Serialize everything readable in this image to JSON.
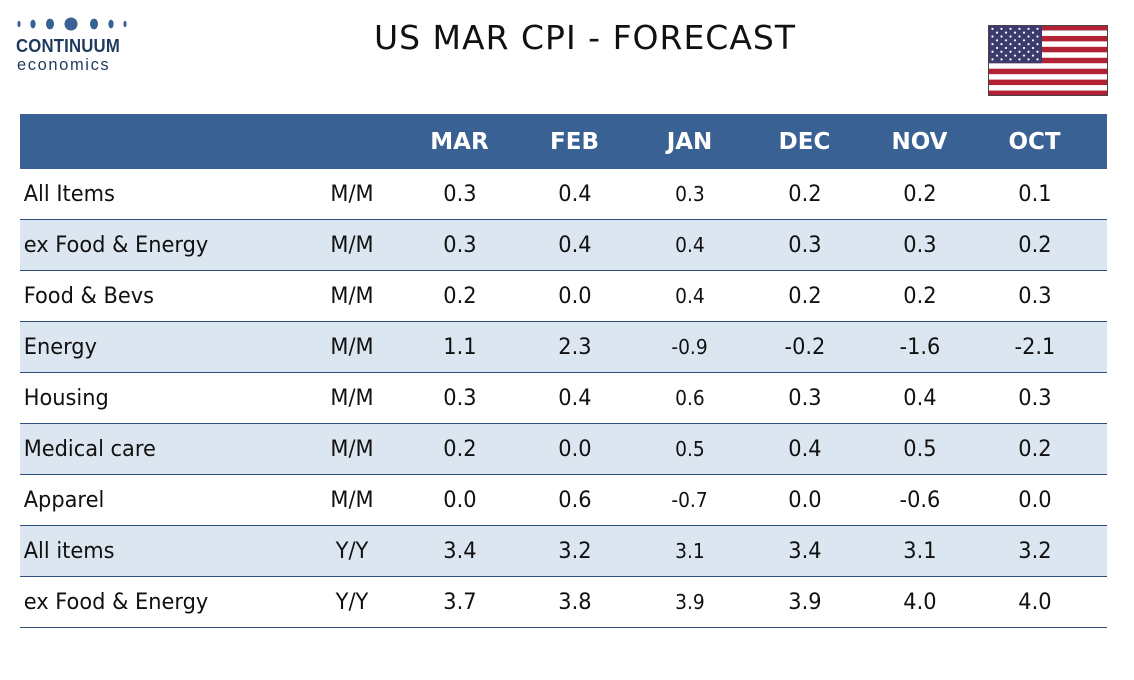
{
  "logo": {
    "line1": "CONTINUUM",
    "line2": "economics"
  },
  "title": "US MAR CPI - FORECAST",
  "flag_icon": "us-flag-icon",
  "colors": {
    "header_bg": "#3a6193",
    "alt_row_bg": "#dce6f1",
    "row_rule": "#2e4f7c",
    "logo_blue": "#1f3a5f",
    "flag_red": "#b22234",
    "flag_blue": "#3c3b6e"
  },
  "table": {
    "columns": [
      "MAR",
      "FEB",
      "JAN",
      "DEC",
      "NOV",
      "OCT"
    ],
    "rows": [
      {
        "label": "All Items",
        "unit": "M/M",
        "values": [
          "0.3",
          "0.4",
          "0.3",
          "0.2",
          "0.2",
          "0.1"
        ]
      },
      {
        "label": "ex Food & Energy",
        "unit": "M/M",
        "values": [
          "0.3",
          "0.4",
          "0.4",
          "0.3",
          "0.3",
          "0.2"
        ]
      },
      {
        "label": "Food & Bevs",
        "unit": "M/M",
        "values": [
          "0.2",
          "0.0",
          "0.4",
          "0.2",
          "0.2",
          "0.3"
        ]
      },
      {
        "label": "Energy",
        "unit": "M/M",
        "values": [
          "1.1",
          "2.3",
          "-0.9",
          "-0.2",
          "-1.6",
          "-2.1"
        ]
      },
      {
        "label": "Housing",
        "unit": "M/M",
        "values": [
          "0.3",
          "0.4",
          "0.6",
          "0.3",
          "0.4",
          "0.3"
        ]
      },
      {
        "label": "Medical care",
        "unit": "M/M",
        "values": [
          "0.2",
          "0.0",
          "0.5",
          "0.4",
          "0.5",
          "0.2"
        ]
      },
      {
        "label": "Apparel",
        "unit": "M/M",
        "values": [
          "0.0",
          "0.6",
          "-0.7",
          "0.0",
          "-0.6",
          "0.0"
        ]
      },
      {
        "label": "All items",
        "unit": "Y/Y",
        "values": [
          "3.4",
          "3.2",
          "3.1",
          "3.4",
          "3.1",
          "3.2"
        ]
      },
      {
        "label": "ex Food & Energy",
        "unit": "Y/Y",
        "values": [
          "3.7",
          "3.8",
          "3.9",
          "3.9",
          "4.0",
          "4.0"
        ]
      }
    ]
  }
}
